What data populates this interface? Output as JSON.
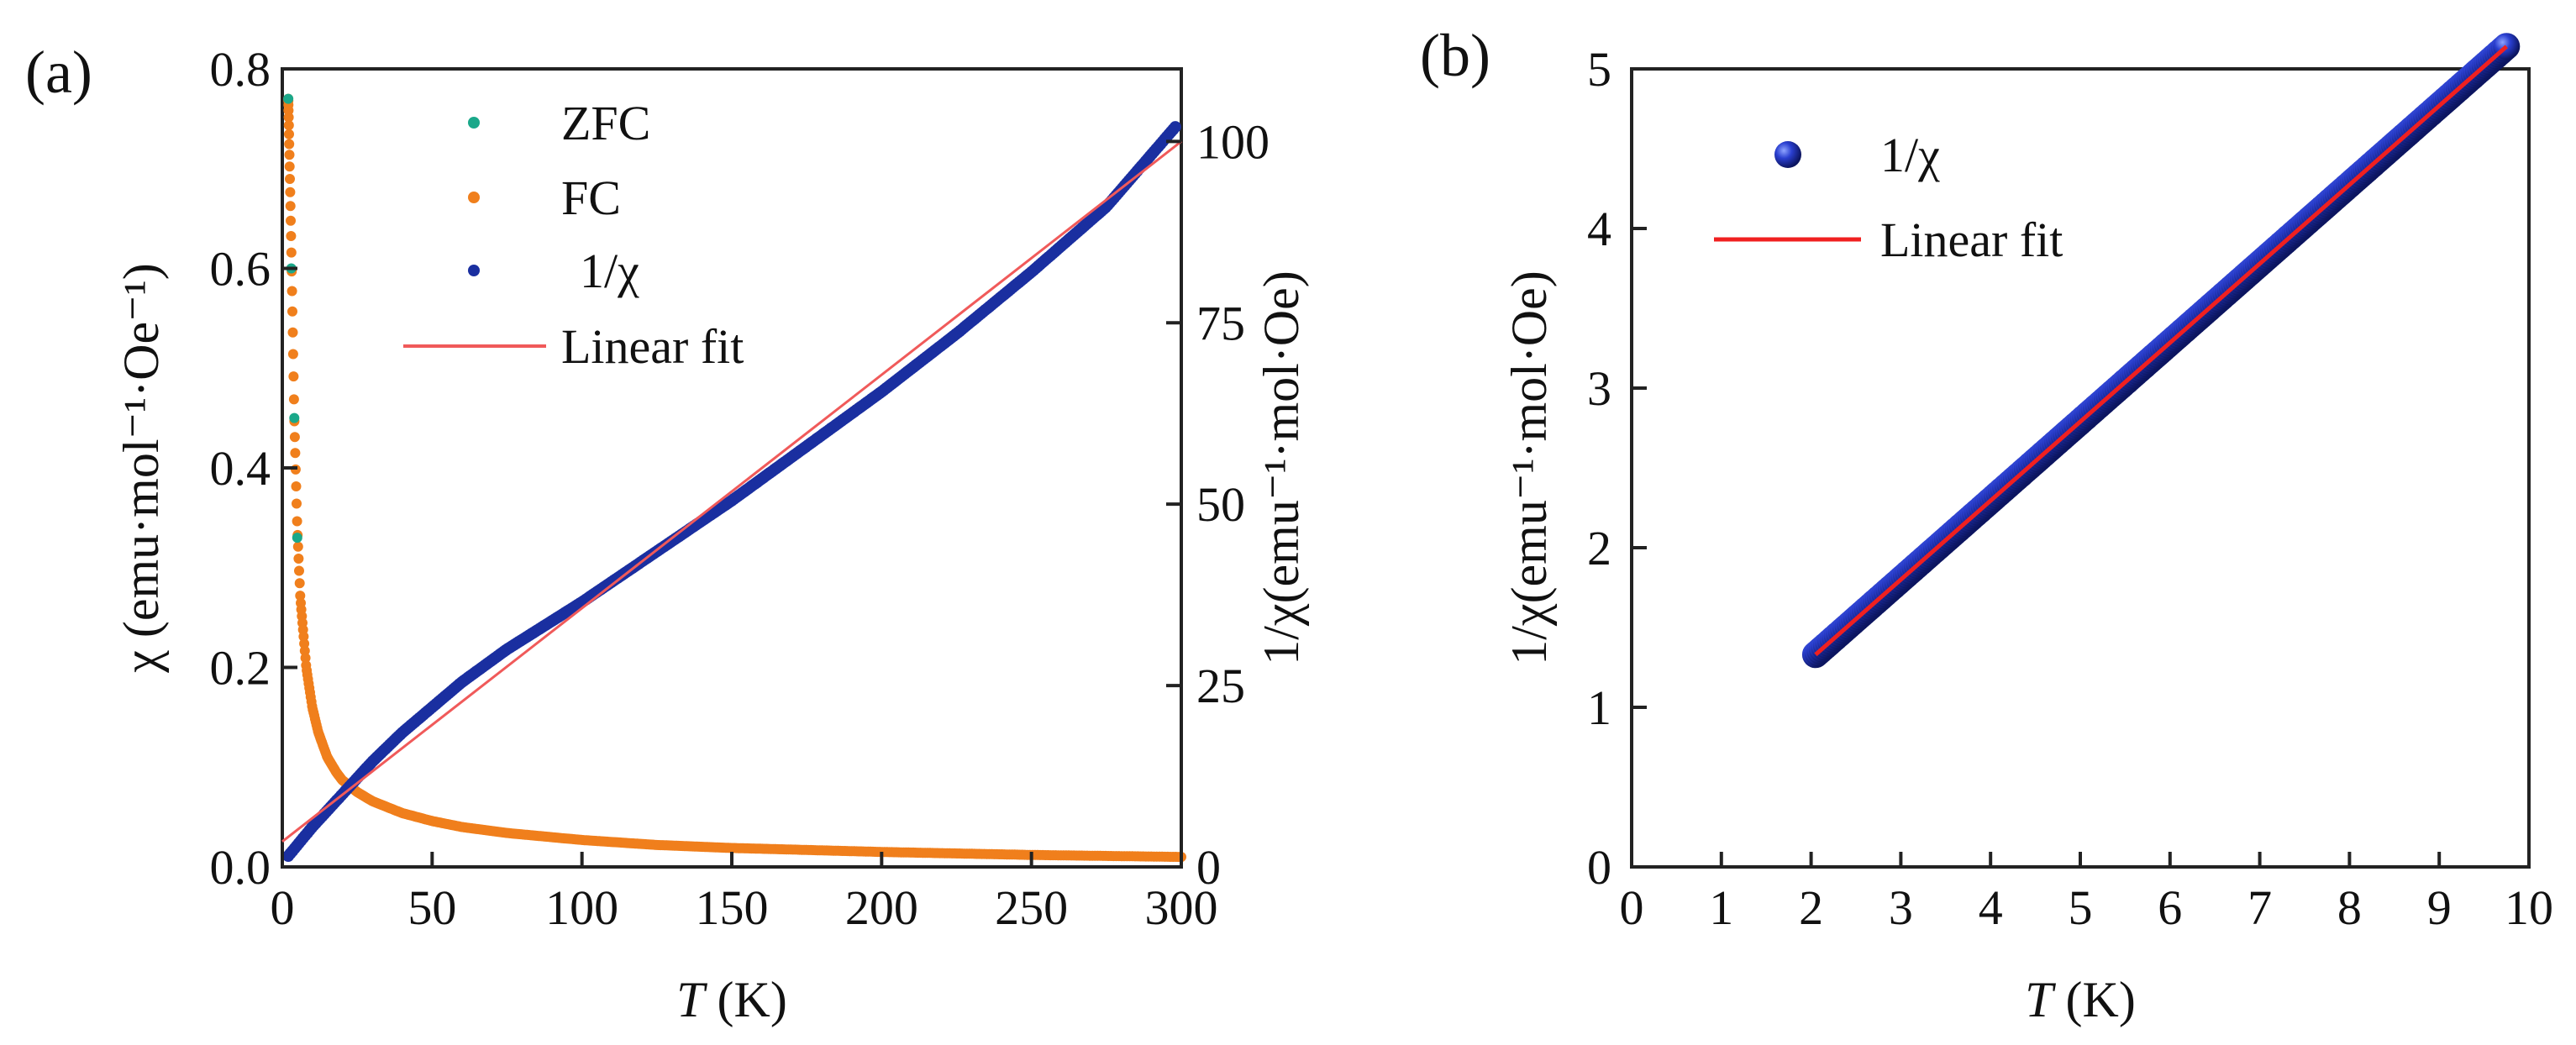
{
  "chart_data": [
    {
      "panel": "(a)",
      "type": "scatter",
      "xlabel_italic": "T",
      "xlabel_unit": " (K)",
      "xlim": [
        0,
        300
      ],
      "xticks": [
        "0",
        "50",
        "100",
        "150",
        "200",
        "250",
        "300"
      ],
      "ylabel_left": "χ (emu·mol⁻¹·Oe⁻¹)",
      "ylim_left": [
        0.0,
        0.8
      ],
      "yticks_left": [
        "0.0",
        "0.2",
        "0.4",
        "0.6",
        "0.8"
      ],
      "ylabel_right": "1/χ(emu⁻¹·mol·Oe)",
      "ylim_right": [
        0,
        110
      ],
      "yticks_right": [
        "0",
        "25",
        "50",
        "75",
        "100"
      ],
      "legend": [
        {
          "label": "ZFC",
          "marker": "dot",
          "color": "#1aa88a"
        },
        {
          "label": "FC",
          "marker": "dot",
          "color": "#f07f1c"
        },
        {
          "label": "1/χ",
          "marker": "dot",
          "color": "#1a2fa0"
        },
        {
          "label": "Linear fit",
          "marker": "line",
          "color": "#f05a5a"
        }
      ],
      "series": [
        {
          "name": "ZFC",
          "axis": "left",
          "color": "#1aa88a",
          "x": [
            2,
            3,
            4,
            5
          ],
          "y": [
            0.77,
            0.6,
            0.45,
            0.33
          ]
        },
        {
          "name": "FC",
          "axis": "left",
          "color": "#f07f1c",
          "x": [
            2,
            3,
            4,
            5,
            6,
            8,
            10,
            12,
            15,
            18,
            20,
            25,
            30,
            40,
            50,
            60,
            75,
            100,
            125,
            150,
            175,
            200,
            250,
            300
          ],
          "y": [
            0.77,
            0.62,
            0.45,
            0.34,
            0.27,
            0.2,
            0.16,
            0.135,
            0.11,
            0.095,
            0.087,
            0.075,
            0.066,
            0.054,
            0.046,
            0.04,
            0.034,
            0.027,
            0.022,
            0.019,
            0.017,
            0.015,
            0.012,
            0.01
          ]
        },
        {
          "name": "1/χ",
          "axis": "right",
          "color": "#1a2fa0",
          "x": [
            2,
            5,
            10,
            20,
            30,
            40,
            50,
            60,
            75,
            100,
            125,
            150,
            175,
            200,
            225,
            250,
            275,
            298
          ],
          "y": [
            1.5,
            3,
            5.5,
            10,
            14.5,
            18.5,
            22,
            25.5,
            30,
            36.5,
            43.5,
            50.5,
            58,
            65.5,
            73.5,
            82,
            91,
            102
          ]
        },
        {
          "name": "Linear fit",
          "axis": "right",
          "color": "#f05a5a",
          "x": [
            0,
            300
          ],
          "y": [
            3.5,
            100
          ]
        }
      ]
    },
    {
      "panel": "(b)",
      "type": "scatter",
      "xlabel_italic": "T",
      "xlabel_unit": " (K)",
      "xlim": [
        0,
        10
      ],
      "xticks": [
        "0",
        "1",
        "2",
        "3",
        "4",
        "5",
        "6",
        "7",
        "8",
        "9",
        "10"
      ],
      "ylabel": "1/χ(emu⁻¹·mol·Oe)",
      "ylim": [
        0,
        5
      ],
      "yticks": [
        "0",
        "1",
        "2",
        "3",
        "4",
        "5"
      ],
      "legend": [
        {
          "label": "1/χ",
          "marker": "sphere",
          "color": "#1a2fa0"
        },
        {
          "label": "Linear fit",
          "marker": "line",
          "color": "#f02020"
        }
      ],
      "series": [
        {
          "name": "1/χ",
          "color": "#1a2fa0",
          "x_range": [
            2.05,
            9.75
          ],
          "fit_slope": 0.495,
          "fit_intercept": 0.315
        },
        {
          "name": "Linear fit",
          "color": "#f02020",
          "x": [
            2.05,
            9.75
          ],
          "y": [
            1.33,
            5.14
          ]
        }
      ]
    }
  ]
}
